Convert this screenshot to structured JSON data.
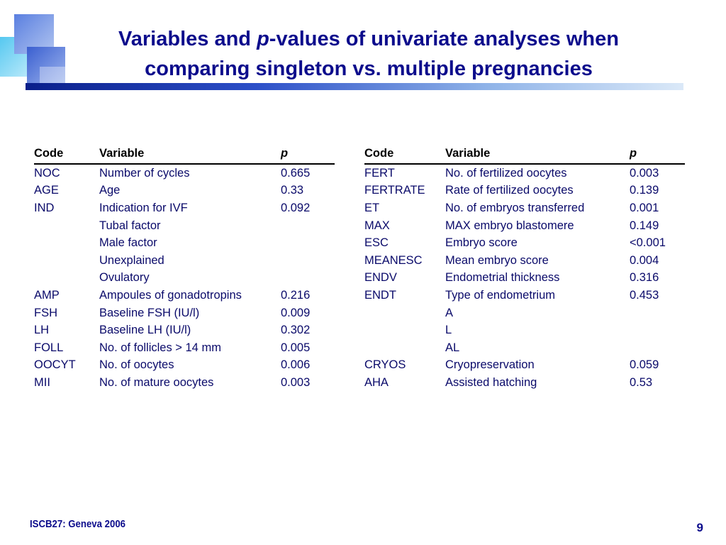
{
  "title": {
    "part1": "Variables and ",
    "italic": "p",
    "part2": "-values of univariate analyses when comparing singleton vs. multiple pregnancies"
  },
  "headers": {
    "code": "Code",
    "variable": "Variable",
    "p": "p"
  },
  "left_table": [
    {
      "code": "NOC",
      "variable": "Number of cycles",
      "p": "0.665",
      "sub": false
    },
    {
      "code": "AGE",
      "variable": "Age",
      "p": "0.33",
      "sub": false
    },
    {
      "code": "IND",
      "variable": "Indication for IVF",
      "p": "0.092",
      "sub": false
    },
    {
      "code": "",
      "variable": "Tubal factor",
      "p": "",
      "sub": true
    },
    {
      "code": "",
      "variable": "Male factor",
      "p": "",
      "sub": true
    },
    {
      "code": "",
      "variable": "Unexplained",
      "p": "",
      "sub": true
    },
    {
      "code": "",
      "variable": "Ovulatory",
      "p": "",
      "sub": true
    },
    {
      "code": "AMP",
      "variable": "Ampoules of gonadotropins",
      "p": "0.216",
      "sub": false
    },
    {
      "code": "FSH",
      "variable": "Baseline FSH (IU/l)",
      "p": "0.009",
      "sub": false
    },
    {
      "code": "LH",
      "variable": "Baseline LH (IU/l)",
      "p": "0.302",
      "sub": false
    },
    {
      "code": "FOLL",
      "variable": "No. of follicles > 14 mm",
      "p": "0.005",
      "sub": false
    },
    {
      "code": "OOCYT",
      "variable": "No. of oocytes",
      "p": "0.006",
      "sub": false
    },
    {
      "code": "MII",
      "variable": "No. of mature oocytes",
      "p": "0.003",
      "sub": false
    }
  ],
  "right_table": [
    {
      "code": "FERT",
      "variable": "No. of fertilized oocytes",
      "p": "0.003",
      "sub": false
    },
    {
      "code": "FERTRATE",
      "variable": "Rate of fertilized oocytes",
      "p": "0.139",
      "sub": false
    },
    {
      "code": "ET",
      "variable": "No. of embryos transferred",
      "p": "0.001",
      "sub": false
    },
    {
      "code": "MAX",
      "variable": "MAX embryo blastomere",
      "p": "0.149",
      "sub": false
    },
    {
      "code": "ESC",
      "variable": "Embryo score",
      "p": "<0.001",
      "sub": false
    },
    {
      "code": "MEANESC",
      "variable": "Mean embryo score",
      "p": "0.004",
      "sub": false
    },
    {
      "code": "ENDV",
      "variable": "Endometrial thickness",
      "p": "0.316",
      "sub": false
    },
    {
      "code": "ENDT",
      "variable": "Type of endometrium",
      "p": "0.453",
      "sub": false
    },
    {
      "code": "",
      "variable": "A",
      "p": "",
      "sub": true
    },
    {
      "code": "",
      "variable": "L",
      "p": "",
      "sub": true
    },
    {
      "code": "",
      "variable": "AL",
      "p": "",
      "sub": true
    },
    {
      "code": "CRYOS",
      "variable": "Cryopreservation",
      "p": "0.059",
      "sub": false
    },
    {
      "code": "AHA",
      "variable": "Assisted hatching",
      "p": "0.53",
      "sub": false
    }
  ],
  "footer": {
    "left": "ISCB27: Geneva 2006",
    "page": "9"
  }
}
